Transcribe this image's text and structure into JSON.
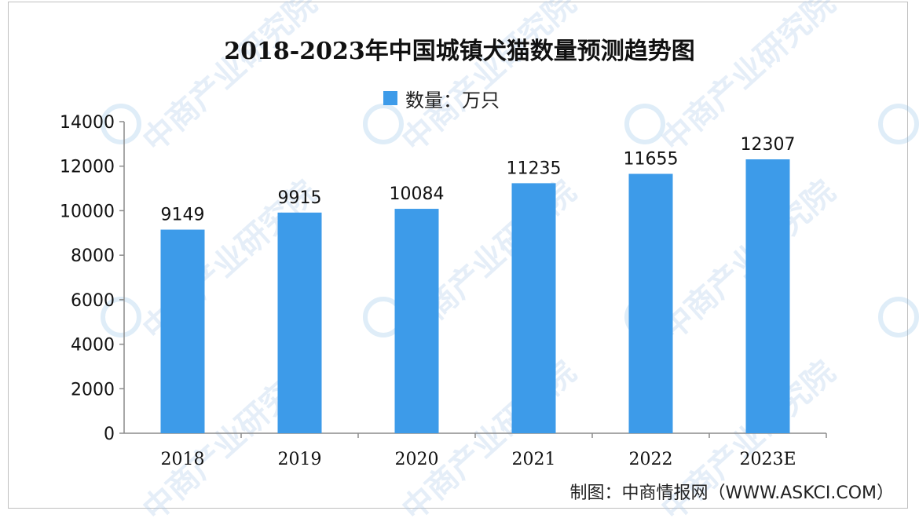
{
  "chart_data": {
    "type": "bar",
    "title": "2018-2023年中国城镇犬猫数量预测趋势图",
    "categories": [
      "2018",
      "2019",
      "2020",
      "2021",
      "2022",
      "2023E"
    ],
    "series": [
      {
        "name": "数量：万只",
        "values": [
          9149,
          9915,
          10084,
          11235,
          11655,
          12307
        ],
        "color": "#3d9be9"
      }
    ],
    "yticks": [
      0,
      2000,
      4000,
      6000,
      8000,
      10000,
      12000,
      14000
    ],
    "ylim": [
      0,
      14000
    ],
    "grid": false,
    "legend_position": "top-center"
  },
  "source": "制图：中商情报网（WWW.ASKCI.COM）",
  "watermark": "中商产业研究院",
  "colors": {
    "bar": "#3d9be9",
    "axis": "#8c8c8c",
    "text": "#111111"
  }
}
